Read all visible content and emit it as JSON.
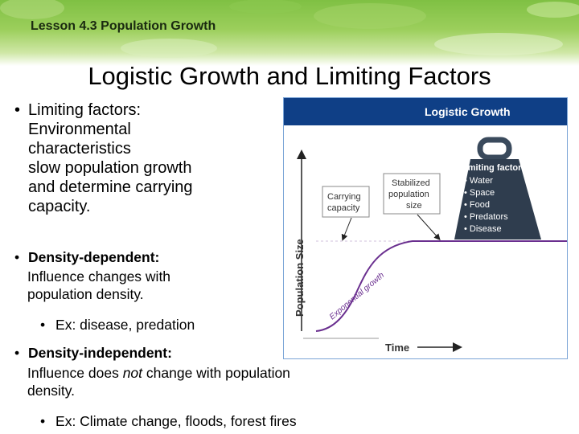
{
  "header": {
    "lesson": "Lesson 4.3 Population Growth"
  },
  "slide": {
    "title": "Logistic Growth and Limiting Factors"
  },
  "bullets": [
    {
      "heading": "Limiting factors:",
      "lines": [
        "Environmental",
        "characteristics",
        "slow population growth",
        "and determine carrying",
        "capacity."
      ]
    },
    {
      "heading": "Density-dependent:",
      "lines": [
        "Influence changes with",
        "population density."
      ],
      "example": "Ex: disease, predation"
    },
    {
      "heading": "Density-independent:",
      "line1_pre": "Influence does ",
      "line1_em": "not",
      "line1_post": " change with population",
      "line2": "density.",
      "example": "Ex: Climate change, floods, forest fires"
    }
  ],
  "bullet_char": "•",
  "figure": {
    "title": "Logistic Growth",
    "y_axis": "Population Size",
    "x_axis": "Time",
    "curve_label": "Exponential growth",
    "callout_carrying": [
      "Carrying",
      "capacity"
    ],
    "callout_stabilized": [
      "Stabilized",
      "population",
      "size"
    ],
    "weight_heading": "Limiting factors:",
    "weight_items": [
      "Water",
      "Space",
      "Food",
      "Predators",
      "Disease"
    ],
    "colors": {
      "header_blue": "#0f3f86",
      "curve": "#6a2f8f",
      "weight": "#2f3d4e"
    }
  }
}
